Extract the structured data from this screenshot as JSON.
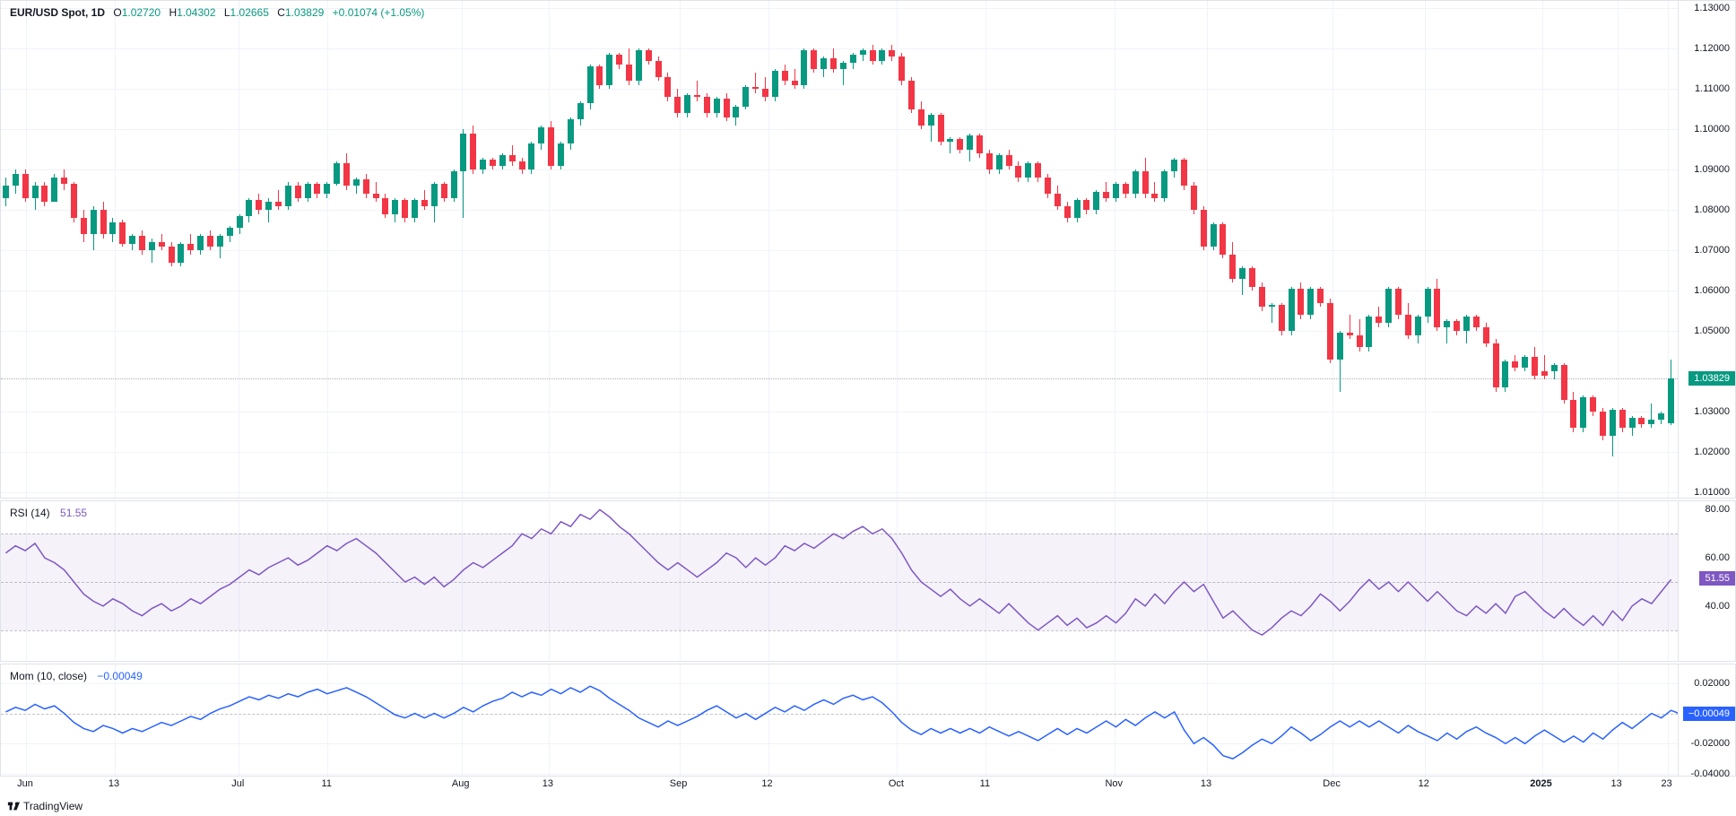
{
  "header": {
    "symbol": "EUR/USD Spot, 1D",
    "O_label": "O",
    "O": "1.02720",
    "H_label": "H",
    "H": "1.04302",
    "L_label": "L",
    "L": "1.02665",
    "C_label": "C",
    "C": "1.03829",
    "change": "+0.01074 (+1.05%)",
    "ohlc_color": "#089981"
  },
  "colors": {
    "grid": "#f0f3fa",
    "border": "#e0e3eb",
    "up": "#089981",
    "down": "#f23645",
    "rsi_line": "#7e57c2",
    "rsi_fill": "rgba(126,87,194,0.08)",
    "mom_line": "#2962ff",
    "text": "#131722",
    "dash": "#787b86"
  },
  "price_pane": {
    "ymin": 1.01,
    "ymax": 1.13,
    "ticks": [
      "1.01000",
      "1.02000",
      "1.03000",
      "1.05000",
      "1.06000",
      "1.07000",
      "1.08000",
      "1.09000",
      "1.10000",
      "1.11000",
      "1.12000",
      "1.13000"
    ],
    "tick_vals": [
      1.01,
      1.02,
      1.03,
      1.05,
      1.06,
      1.07,
      1.08,
      1.09,
      1.1,
      1.11,
      1.12,
      1.13
    ],
    "current_badge": "1.03829",
    "current_val": 1.03829,
    "badge_bg": "#089981"
  },
  "candles": [
    [
      1.083,
      1.088,
      1.081,
      1.086,
      1
    ],
    [
      1.086,
      1.09,
      1.084,
      1.089,
      1
    ],
    [
      1.089,
      1.09,
      1.082,
      1.083,
      0
    ],
    [
      1.083,
      1.087,
      1.08,
      1.086,
      1
    ],
    [
      1.086,
      1.087,
      1.081,
      1.082,
      0
    ],
    [
      1.082,
      1.089,
      1.082,
      1.088,
      1
    ],
    [
      1.088,
      1.09,
      1.085,
      1.0865,
      0
    ],
    [
      1.0865,
      1.087,
      1.077,
      1.078,
      0
    ],
    [
      1.078,
      1.08,
      1.072,
      1.074,
      0
    ],
    [
      1.074,
      1.081,
      1.07,
      1.08,
      1
    ],
    [
      1.08,
      1.082,
      1.073,
      1.074,
      0
    ],
    [
      1.074,
      1.078,
      1.072,
      1.077,
      1
    ],
    [
      1.077,
      1.0775,
      1.071,
      1.0715,
      0
    ],
    [
      1.0715,
      1.074,
      1.07,
      1.0735,
      1
    ],
    [
      1.0735,
      1.075,
      1.069,
      1.07,
      0
    ],
    [
      1.07,
      1.073,
      1.067,
      1.072,
      1
    ],
    [
      1.072,
      1.074,
      1.07,
      1.071,
      0
    ],
    [
      1.071,
      1.072,
      1.066,
      1.067,
      0
    ],
    [
      1.067,
      1.072,
      1.066,
      1.0715,
      1
    ],
    [
      1.0715,
      1.074,
      1.069,
      1.07,
      0
    ],
    [
      1.07,
      1.074,
      1.069,
      1.0735,
      1
    ],
    [
      1.0735,
      1.075,
      1.07,
      1.071,
      0
    ],
    [
      1.071,
      1.074,
      1.068,
      1.0735,
      1
    ],
    [
      1.0735,
      1.076,
      1.072,
      1.0755,
      1
    ],
    [
      1.0755,
      1.079,
      1.074,
      1.0785,
      1
    ],
    [
      1.0785,
      1.083,
      1.077,
      1.0825,
      1
    ],
    [
      1.0825,
      1.084,
      1.079,
      1.08,
      0
    ],
    [
      1.08,
      1.083,
      1.077,
      1.082,
      1
    ],
    [
      1.082,
      1.085,
      1.08,
      1.081,
      0
    ],
    [
      1.081,
      1.087,
      1.08,
      1.086,
      1
    ],
    [
      1.086,
      1.087,
      1.082,
      1.083,
      0
    ],
    [
      1.083,
      1.087,
      1.082,
      1.0865,
      1
    ],
    [
      1.0865,
      1.087,
      1.083,
      1.084,
      0
    ],
    [
      1.084,
      1.087,
      1.083,
      1.0865,
      1
    ],
    [
      1.0865,
      1.092,
      1.086,
      1.0915,
      1
    ],
    [
      1.0915,
      1.094,
      1.085,
      1.086,
      0
    ],
    [
      1.086,
      1.088,
      1.084,
      1.0875,
      1
    ],
    [
      1.0875,
      1.089,
      1.083,
      1.084,
      0
    ],
    [
      1.084,
      1.087,
      1.082,
      1.083,
      0
    ],
    [
      1.083,
      1.084,
      1.078,
      1.079,
      0
    ],
    [
      1.079,
      1.083,
      1.077,
      1.0825,
      1
    ],
    [
      1.0825,
      1.083,
      1.077,
      1.078,
      0
    ],
    [
      1.078,
      1.083,
      1.077,
      1.0825,
      1
    ],
    [
      1.0825,
      1.085,
      1.08,
      1.081,
      0
    ],
    [
      1.081,
      1.087,
      1.077,
      1.0865,
      1
    ],
    [
      1.0865,
      1.087,
      1.082,
      1.083,
      0
    ],
    [
      1.083,
      1.09,
      1.082,
      1.0895,
      1
    ],
    [
      1.0895,
      1.1,
      1.078,
      1.099,
      1
    ],
    [
      1.099,
      1.101,
      1.089,
      1.09,
      0
    ],
    [
      1.09,
      1.093,
      1.089,
      1.0925,
      1
    ],
    [
      1.0925,
      1.093,
      1.09,
      1.091,
      0
    ],
    [
      1.091,
      1.094,
      1.09,
      1.0935,
      1
    ],
    [
      1.0935,
      1.096,
      1.091,
      1.092,
      0
    ],
    [
      1.092,
      1.093,
      1.089,
      1.09,
      0
    ],
    [
      1.09,
      1.097,
      1.089,
      1.0965,
      1
    ],
    [
      1.0965,
      1.101,
      1.095,
      1.1005,
      1
    ],
    [
      1.1005,
      1.102,
      1.09,
      1.091,
      0
    ],
    [
      1.091,
      1.097,
      1.09,
      1.0965,
      1
    ],
    [
      1.0965,
      1.103,
      1.095,
      1.1025,
      1
    ],
    [
      1.1025,
      1.107,
      1.101,
      1.1065,
      1
    ],
    [
      1.1065,
      1.116,
      1.105,
      1.1155,
      1
    ],
    [
      1.1155,
      1.116,
      1.11,
      1.111,
      0
    ],
    [
      1.111,
      1.119,
      1.11,
      1.1185,
      1
    ],
    [
      1.1185,
      1.119,
      1.115,
      1.116,
      0
    ],
    [
      1.116,
      1.12,
      1.111,
      1.112,
      0
    ],
    [
      1.112,
      1.12,
      1.111,
      1.1195,
      1
    ],
    [
      1.1195,
      1.12,
      1.116,
      1.117,
      0
    ],
    [
      1.117,
      1.118,
      1.112,
      1.113,
      0
    ],
    [
      1.113,
      1.114,
      1.107,
      1.108,
      0
    ],
    [
      1.108,
      1.11,
      1.103,
      1.104,
      0
    ],
    [
      1.104,
      1.109,
      1.103,
      1.1085,
      1
    ],
    [
      1.1085,
      1.112,
      1.107,
      1.108,
      0
    ],
    [
      1.108,
      1.109,
      1.103,
      1.104,
      0
    ],
    [
      1.104,
      1.108,
      1.103,
      1.1075,
      1
    ],
    [
      1.1075,
      1.109,
      1.102,
      1.103,
      0
    ],
    [
      1.103,
      1.106,
      1.101,
      1.1055,
      1
    ],
    [
      1.1055,
      1.111,
      1.105,
      1.1105,
      1
    ],
    [
      1.1105,
      1.114,
      1.109,
      1.11,
      0
    ],
    [
      1.11,
      1.113,
      1.107,
      1.108,
      0
    ],
    [
      1.108,
      1.115,
      1.107,
      1.1145,
      1
    ],
    [
      1.1145,
      1.116,
      1.111,
      1.112,
      0
    ],
    [
      1.112,
      1.115,
      1.11,
      1.111,
      0
    ],
    [
      1.111,
      1.12,
      1.11,
      1.1195,
      1
    ],
    [
      1.1195,
      1.12,
      1.114,
      1.115,
      0
    ],
    [
      1.115,
      1.118,
      1.113,
      1.1175,
      1
    ],
    [
      1.1175,
      1.12,
      1.114,
      1.115,
      0
    ],
    [
      1.115,
      1.117,
      1.111,
      1.1165,
      1
    ],
    [
      1.1165,
      1.119,
      1.115,
      1.1185,
      1
    ],
    [
      1.1185,
      1.12,
      1.117,
      1.1195,
      1
    ],
    [
      1.1195,
      1.121,
      1.116,
      1.117,
      0
    ],
    [
      1.117,
      1.12,
      1.116,
      1.1195,
      1
    ],
    [
      1.1195,
      1.121,
      1.117,
      1.118,
      0
    ],
    [
      1.118,
      1.119,
      1.111,
      1.112,
      0
    ],
    [
      1.112,
      1.113,
      1.104,
      1.105,
      0
    ],
    [
      1.105,
      1.107,
      1.1,
      1.101,
      0
    ],
    [
      1.101,
      1.104,
      1.097,
      1.1035,
      1
    ],
    [
      1.1035,
      1.104,
      1.096,
      1.097,
      0
    ],
    [
      1.097,
      1.098,
      1.094,
      1.0975,
      1
    ],
    [
      1.0975,
      1.098,
      1.094,
      1.095,
      0
    ],
    [
      1.095,
      1.099,
      1.092,
      1.0985,
      1
    ],
    [
      1.0985,
      1.099,
      1.093,
      1.094,
      0
    ],
    [
      1.094,
      1.095,
      1.089,
      1.09,
      0
    ],
    [
      1.09,
      1.094,
      1.089,
      1.0935,
      1
    ],
    [
      1.0935,
      1.095,
      1.09,
      1.091,
      0
    ],
    [
      1.091,
      1.092,
      1.087,
      1.088,
      0
    ],
    [
      1.088,
      1.092,
      1.087,
      1.0915,
      1
    ],
    [
      1.0915,
      1.092,
      1.087,
      1.088,
      0
    ],
    [
      1.088,
      1.089,
      1.083,
      1.084,
      0
    ],
    [
      1.084,
      1.086,
      1.08,
      1.081,
      0
    ],
    [
      1.081,
      1.082,
      1.077,
      1.078,
      0
    ],
    [
      1.078,
      1.083,
      1.077,
      1.0825,
      1
    ],
    [
      1.0825,
      1.083,
      1.079,
      1.08,
      0
    ],
    [
      1.08,
      1.085,
      1.079,
      1.0845,
      1
    ],
    [
      1.0845,
      1.087,
      1.082,
      1.083,
      0
    ],
    [
      1.083,
      1.087,
      1.082,
      1.0865,
      1
    ],
    [
      1.0865,
      1.087,
      1.083,
      1.084,
      0
    ],
    [
      1.084,
      1.09,
      1.083,
      1.0895,
      1
    ],
    [
      1.0895,
      1.093,
      1.083,
      1.084,
      0
    ],
    [
      1.084,
      1.087,
      1.082,
      1.083,
      0
    ],
    [
      1.083,
      1.09,
      1.082,
      1.0895,
      1
    ],
    [
      1.0895,
      1.093,
      1.088,
      1.0925,
      1
    ],
    [
      1.0925,
      1.093,
      1.085,
      1.086,
      0
    ],
    [
      1.086,
      1.087,
      1.079,
      1.08,
      0
    ],
    [
      1.08,
      1.081,
      1.07,
      1.071,
      0
    ],
    [
      1.071,
      1.077,
      1.07,
      1.0765,
      1
    ],
    [
      1.0765,
      1.077,
      1.068,
      1.069,
      0
    ],
    [
      1.069,
      1.072,
      1.062,
      1.063,
      0
    ],
    [
      1.063,
      1.066,
      1.059,
      1.0655,
      1
    ],
    [
      1.0655,
      1.066,
      1.06,
      1.061,
      0
    ],
    [
      1.061,
      1.062,
      1.055,
      1.056,
      0
    ],
    [
      1.056,
      1.057,
      1.052,
      1.0565,
      1
    ],
    [
      1.0565,
      1.057,
      1.049,
      1.05,
      0
    ],
    [
      1.05,
      1.061,
      1.049,
      1.0605,
      1
    ],
    [
      1.0605,
      1.062,
      1.053,
      1.054,
      0
    ],
    [
      1.054,
      1.061,
      1.053,
      1.0605,
      1
    ],
    [
      1.0605,
      1.061,
      1.056,
      1.057,
      0
    ],
    [
      1.057,
      1.058,
      1.042,
      1.043,
      0
    ],
    [
      1.043,
      1.05,
      1.035,
      1.0495,
      1
    ],
    [
      1.0495,
      1.054,
      1.048,
      1.049,
      0
    ],
    [
      1.049,
      1.053,
      1.045,
      1.046,
      0
    ],
    [
      1.046,
      1.054,
      1.045,
      1.0535,
      1
    ],
    [
      1.0535,
      1.056,
      1.051,
      1.052,
      0
    ],
    [
      1.052,
      1.061,
      1.051,
      1.0605,
      1
    ],
    [
      1.0605,
      1.061,
      1.053,
      1.054,
      0
    ],
    [
      1.054,
      1.057,
      1.048,
      1.049,
      0
    ],
    [
      1.049,
      1.054,
      1.047,
      1.0535,
      1
    ],
    [
      1.0535,
      1.061,
      1.052,
      1.0605,
      1
    ],
    [
      1.0605,
      1.063,
      1.05,
      1.051,
      0
    ],
    [
      1.051,
      1.053,
      1.047,
      1.0525,
      1
    ],
    [
      1.0525,
      1.053,
      1.049,
      1.05,
      0
    ],
    [
      1.05,
      1.054,
      1.047,
      1.0535,
      1
    ],
    [
      1.0535,
      1.054,
      1.05,
      1.051,
      0
    ],
    [
      1.051,
      1.052,
      1.046,
      1.047,
      0
    ],
    [
      1.047,
      1.048,
      1.035,
      1.036,
      0
    ],
    [
      1.036,
      1.043,
      1.035,
      1.0425,
      1
    ],
    [
      1.0425,
      1.044,
      1.04,
      1.041,
      0
    ],
    [
      1.041,
      1.044,
      1.04,
      1.0435,
      1
    ],
    [
      1.0435,
      1.046,
      1.038,
      1.039,
      0
    ],
    [
      1.039,
      1.044,
      1.038,
      1.04,
      0
    ],
    [
      1.04,
      1.042,
      1.038,
      1.0415,
      1
    ],
    [
      1.0415,
      1.042,
      1.032,
      1.033,
      0
    ],
    [
      1.033,
      1.035,
      1.025,
      1.026,
      0
    ],
    [
      1.026,
      1.034,
      1.025,
      1.0335,
      1
    ],
    [
      1.0335,
      1.034,
      1.029,
      1.03,
      0
    ],
    [
      1.03,
      1.031,
      1.023,
      1.024,
      0
    ],
    [
      1.024,
      1.031,
      1.019,
      1.0305,
      1
    ],
    [
      1.0305,
      1.031,
      1.025,
      1.026,
      0
    ],
    [
      1.026,
      1.029,
      1.024,
      1.0285,
      1
    ],
    [
      1.0285,
      1.029,
      1.026,
      1.027,
      0
    ],
    [
      1.027,
      1.032,
      1.026,
      1.028,
      1
    ],
    [
      1.028,
      1.03,
      1.027,
      1.0295,
      1
    ],
    [
      1.0272,
      1.043,
      1.0267,
      1.0383,
      1
    ]
  ],
  "rsi": {
    "label": "RSI (14)",
    "value": "51.55",
    "value_color": "#7e57c2",
    "ymin": 18,
    "ymax": 82,
    "ticks": [
      {
        "v": 80,
        "l": "80.00"
      },
      {
        "v": 60,
        "l": "60.00"
      },
      {
        "v": 40,
        "l": "40.00"
      }
    ],
    "band_hi": 70,
    "band_lo": 30,
    "mid": 50,
    "current_badge": "51.55",
    "current_val": 51.55,
    "badge_bg": "#7e57c2",
    "data": [
      62,
      65,
      63,
      66,
      60,
      58,
      55,
      50,
      45,
      42,
      40,
      43,
      41,
      38,
      36,
      39,
      41,
      38,
      40,
      43,
      41,
      44,
      47,
      49,
      52,
      55,
      53,
      56,
      58,
      60,
      57,
      59,
      62,
      65,
      63,
      66,
      68,
      65,
      62,
      58,
      54,
      50,
      52,
      49,
      52,
      48,
      51,
      55,
      58,
      56,
      59,
      62,
      65,
      70,
      68,
      72,
      70,
      75,
      73,
      78,
      76,
      80,
      77,
      73,
      70,
      66,
      62,
      58,
      55,
      58,
      55,
      52,
      55,
      58,
      62,
      60,
      56,
      60,
      57,
      60,
      65,
      63,
      66,
      64,
      67,
      70,
      68,
      71,
      73,
      70,
      72,
      68,
      62,
      55,
      50,
      47,
      44,
      47,
      43,
      40,
      43,
      40,
      37,
      41,
      37,
      33,
      30,
      33,
      36,
      32,
      35,
      31,
      33,
      36,
      33,
      37,
      43,
      40,
      45,
      41,
      46,
      50,
      46,
      49,
      42,
      35,
      38,
      34,
      30,
      28,
      31,
      35,
      38,
      36,
      40,
      45,
      42,
      38,
      42,
      47,
      51,
      47,
      50,
      46,
      50,
      46,
      42,
      46,
      42,
      38,
      36,
      40,
      37,
      41,
      37,
      44,
      46,
      42,
      38,
      35,
      39,
      35,
      32,
      36,
      32,
      38,
      34,
      40,
      43,
      41,
      46,
      51
    ]
  },
  "mom": {
    "label": "Mom (10, close)",
    "value": "−0.00049",
    "value_color": "#2962ff",
    "ymin": -0.04,
    "ymax": 0.03,
    "ticks": [
      {
        "v": 0.02,
        "l": "0.02000"
      },
      {
        "v": -0.02,
        "l": "-0.02000"
      },
      {
        "v": -0.04,
        "l": "-0.04000"
      }
    ],
    "zero": 0,
    "current_badge": "−0.00049",
    "current_val": -0.00049,
    "badge_bg": "#2962ff",
    "data": [
      0.001,
      0.004,
      0.002,
      0.006,
      0.003,
      0.005,
      0.0,
      -0.006,
      -0.01,
      -0.012,
      -0.008,
      -0.01,
      -0.013,
      -0.01,
      -0.012,
      -0.009,
      -0.006,
      -0.008,
      -0.005,
      -0.002,
      -0.004,
      0.0,
      0.003,
      0.005,
      0.008,
      0.011,
      0.009,
      0.012,
      0.01,
      0.013,
      0.011,
      0.014,
      0.016,
      0.013,
      0.015,
      0.017,
      0.014,
      0.011,
      0.007,
      0.003,
      -0.001,
      -0.003,
      0.0,
      -0.003,
      0.0,
      -0.003,
      0.0,
      0.004,
      0.001,
      0.005,
      0.008,
      0.01,
      0.014,
      0.011,
      0.014,
      0.012,
      0.016,
      0.013,
      0.017,
      0.014,
      0.018,
      0.015,
      0.01,
      0.006,
      0.002,
      -0.003,
      -0.006,
      -0.009,
      -0.005,
      -0.008,
      -0.005,
      -0.002,
      0.002,
      0.005,
      0.001,
      -0.003,
      0.0,
      -0.004,
      0.0,
      0.004,
      0.001,
      0.005,
      0.002,
      0.006,
      0.009,
      0.006,
      0.01,
      0.012,
      0.009,
      0.011,
      0.007,
      0.001,
      -0.006,
      -0.011,
      -0.014,
      -0.01,
      -0.013,
      -0.01,
      -0.013,
      -0.01,
      -0.013,
      -0.009,
      -0.012,
      -0.015,
      -0.012,
      -0.015,
      -0.018,
      -0.014,
      -0.01,
      -0.014,
      -0.01,
      -0.013,
      -0.009,
      -0.005,
      -0.009,
      -0.004,
      -0.008,
      -0.003,
      0.001,
      -0.003,
      0.001,
      -0.011,
      -0.02,
      -0.016,
      -0.021,
      -0.028,
      -0.03,
      -0.026,
      -0.021,
      -0.017,
      -0.02,
      -0.015,
      -0.009,
      -0.013,
      -0.018,
      -0.014,
      -0.009,
      -0.005,
      -0.009,
      -0.005,
      -0.009,
      -0.005,
      -0.009,
      -0.013,
      -0.008,
      -0.012,
      -0.015,
      -0.018,
      -0.013,
      -0.017,
      -0.012,
      -0.009,
      -0.013,
      -0.016,
      -0.02,
      -0.016,
      -0.02,
      -0.015,
      -0.011,
      -0.015,
      -0.019,
      -0.015,
      -0.019,
      -0.013,
      -0.017,
      -0.011,
      -0.006,
      -0.01,
      -0.005,
      0.0,
      -0.003,
      0.002,
      -0.0005
    ]
  },
  "time_axis": {
    "labels": [
      {
        "x": 0.015,
        "l": "Jun"
      },
      {
        "x": 0.068,
        "l": "13"
      },
      {
        "x": 0.142,
        "l": "Jul"
      },
      {
        "x": 0.195,
        "l": "11"
      },
      {
        "x": 0.275,
        "l": "Aug"
      },
      {
        "x": 0.327,
        "l": "13"
      },
      {
        "x": 0.405,
        "l": "Sep"
      },
      {
        "x": 0.458,
        "l": "12"
      },
      {
        "x": 0.535,
        "l": "Oct"
      },
      {
        "x": 0.588,
        "l": "11"
      },
      {
        "x": 0.665,
        "l": "Nov"
      },
      {
        "x": 0.72,
        "l": "13"
      },
      {
        "x": 0.795,
        "l": "Dec"
      },
      {
        "x": 0.85,
        "l": "12"
      },
      {
        "x": 0.92,
        "l": "2025",
        "bold": true
      },
      {
        "x": 0.965,
        "l": "13"
      },
      {
        "x": 0.995,
        "l": "23"
      }
    ]
  },
  "branding": "TradingView"
}
